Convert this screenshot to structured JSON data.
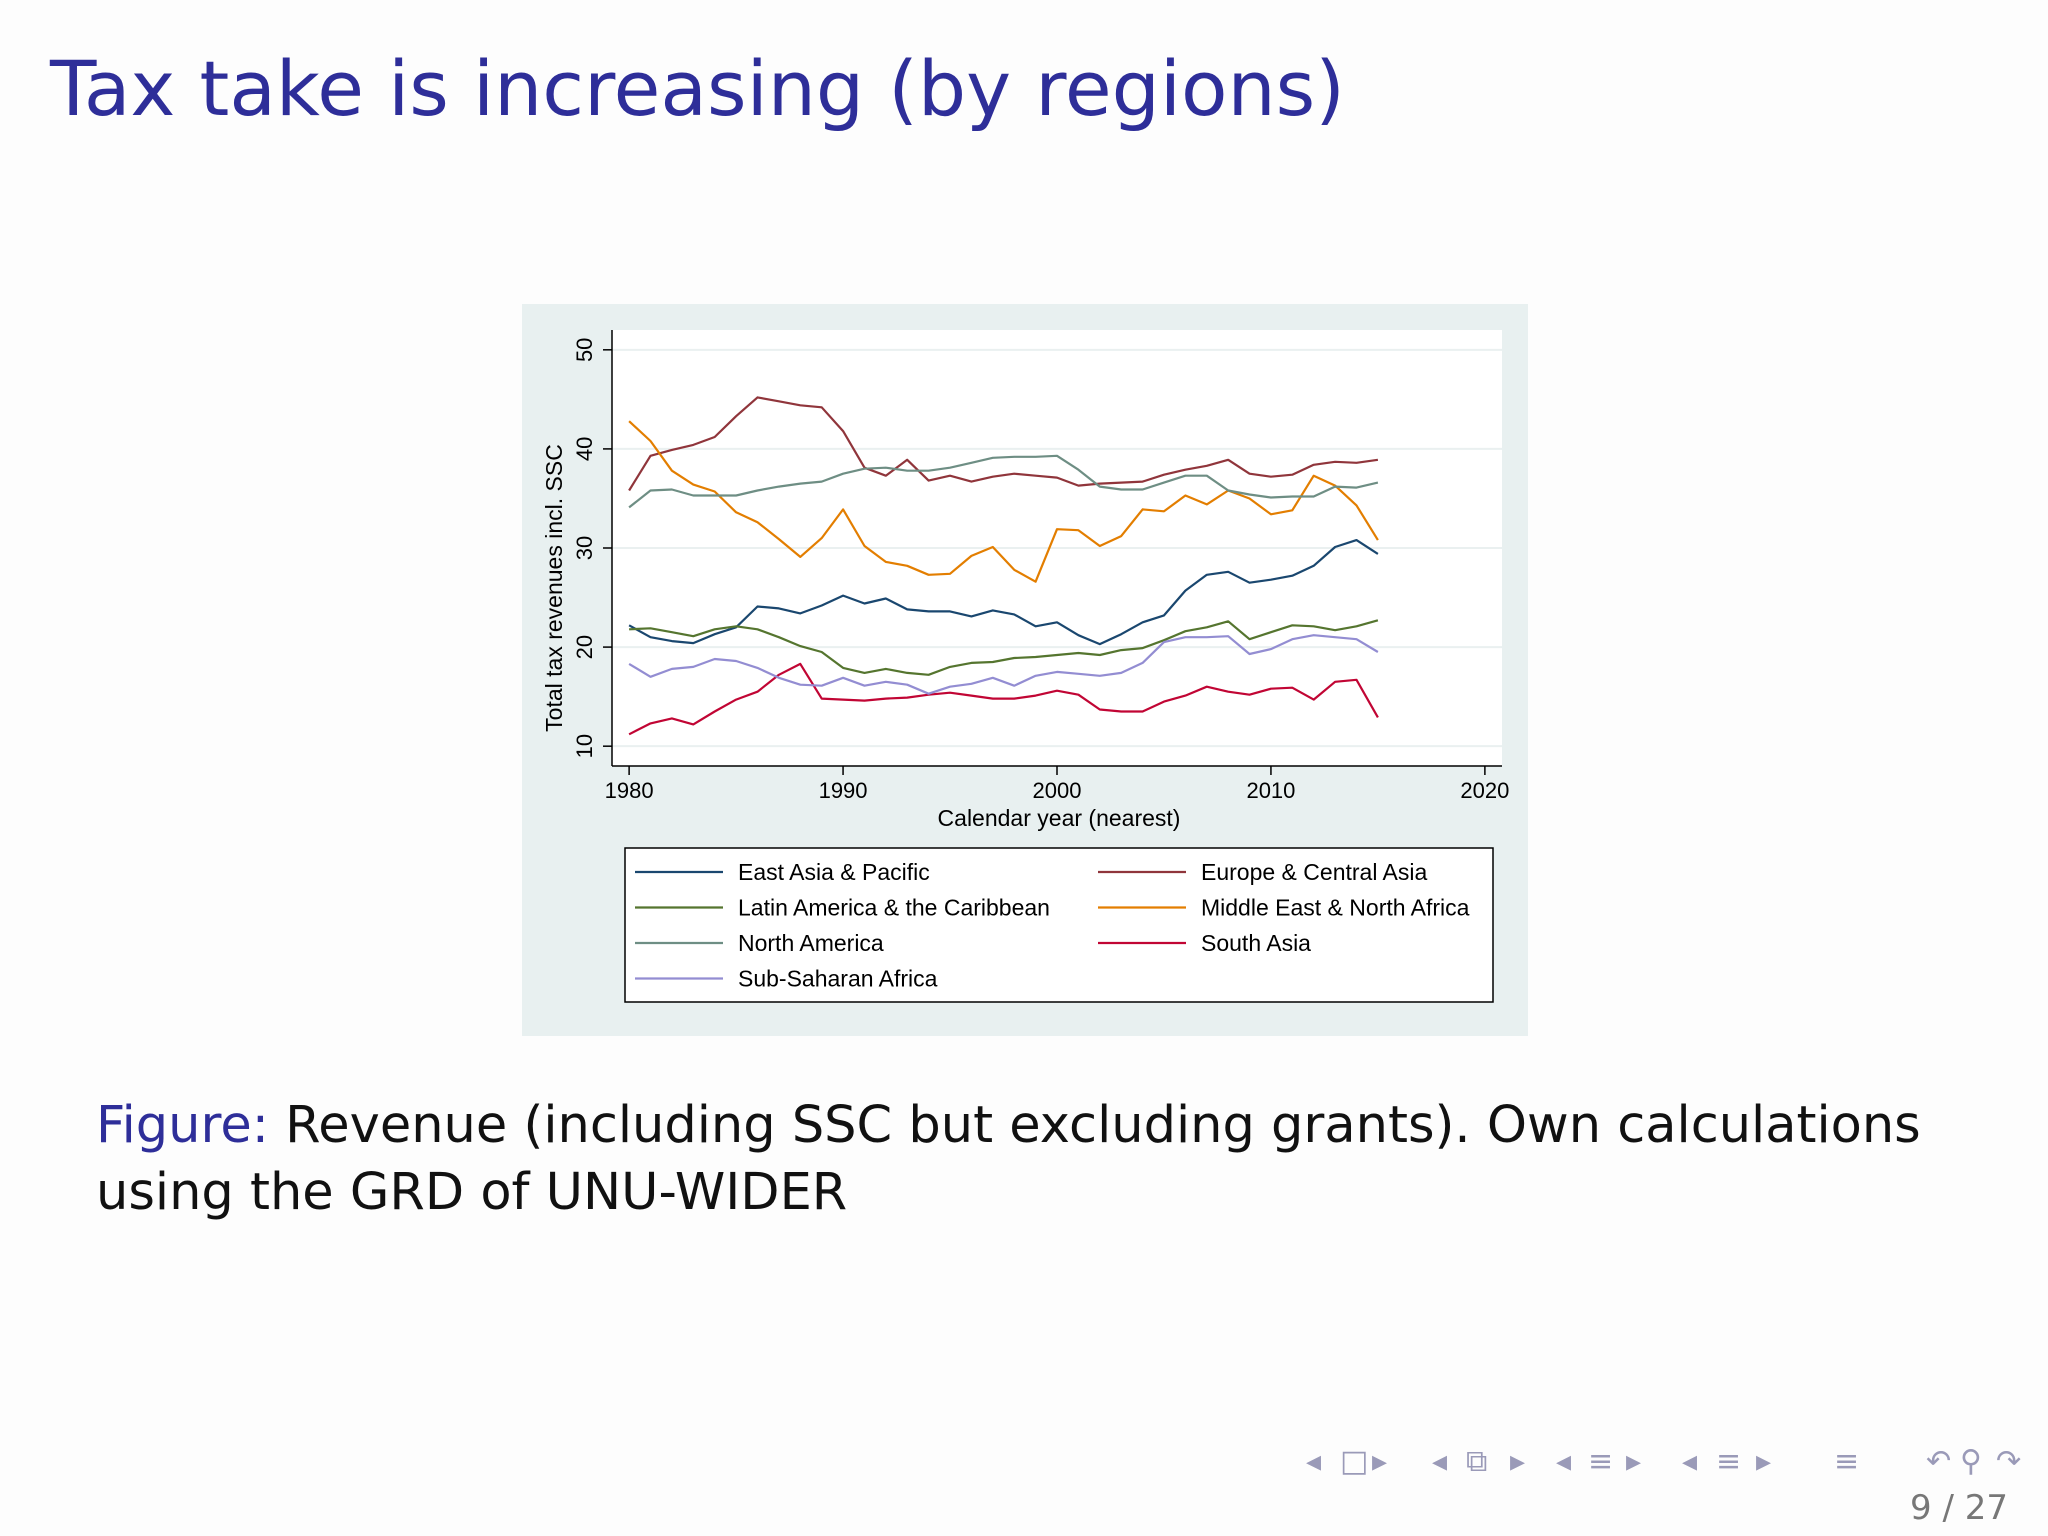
{
  "slide": {
    "title": "Tax take is increasing (by regions)",
    "caption_label": "Figure:",
    "caption_text": "Revenue (including SSC but excluding grants). Own calculations using the GRD of UNU-WIDER",
    "page": "9 / 27"
  },
  "nav": {
    "icons": [
      "arrow-left-icon",
      "frame-icon",
      "arrow-right-icon",
      "arrow-left-icon",
      "subsection-icon",
      "arrow-right-icon",
      "arrow-left-icon",
      "section-icon",
      "arrow-right-icon",
      "arrow-left-icon",
      "list-icon",
      "arrow-right-icon",
      "toc-icon",
      "undo-icon",
      "search-icon",
      "redo-icon"
    ]
  },
  "colors": {
    "title": "#2e2e99",
    "chart_bg": "#e8f0f0",
    "plot_bg": "#ffffff"
  },
  "chart_data": {
    "type": "line",
    "xlabel": "Calendar year (nearest)",
    "ylabel": "Total tax revenues incl. SSC",
    "xlim": [
      1979,
      1981
    ],
    "ylim": [
      8,
      52
    ],
    "xticks": [
      "1980",
      "1990",
      "2000",
      "2010",
      "2020"
    ],
    "yticks": [
      "10",
      "20",
      "30",
      "40",
      "50"
    ],
    "grid": true,
    "legend": "below",
    "years": [
      1980,
      1981,
      1982,
      1983,
      1984,
      1985,
      1986,
      1987,
      1988,
      1989,
      1990,
      1991,
      1992,
      1993,
      1994,
      1995,
      1996,
      1997,
      1998,
      1999,
      2000,
      2001,
      2002,
      2003,
      2004,
      2005,
      2006,
      2007,
      2008,
      2009,
      2010,
      2011,
      2012,
      2013,
      2014,
      2015
    ],
    "series": [
      {
        "name": "East Asia & Pacific",
        "color": "#1a476f",
        "values": [
          22.2,
          21.0,
          20.6,
          20.4,
          21.3,
          22.0,
          24.1,
          23.9,
          23.4,
          24.2,
          25.2,
          24.4,
          24.9,
          23.8,
          23.6,
          23.6,
          23.1,
          23.7,
          23.3,
          22.1,
          22.5,
          21.2,
          20.3,
          21.3,
          22.5,
          23.2,
          25.7,
          27.3,
          27.6,
          26.5,
          26.8,
          27.2,
          28.2,
          30.1,
          30.8,
          29.4
        ]
      },
      {
        "name": "Europe & Central Asia",
        "color": "#90353b",
        "values": [
          35.8,
          39.3,
          39.9,
          40.4,
          41.2,
          43.3,
          45.2,
          44.8,
          44.4,
          44.2,
          41.8,
          38.1,
          37.3,
          38.9,
          36.8,
          37.3,
          36.7,
          37.2,
          37.5,
          37.3,
          37.1,
          36.3,
          36.5,
          36.6,
          36.7,
          37.4,
          37.9,
          38.3,
          38.9,
          37.5,
          37.2,
          37.4,
          38.4,
          38.7,
          38.6,
          38.9
        ]
      },
      {
        "name": "Latin America & the Caribbean",
        "color": "#55752f",
        "values": [
          21.8,
          21.9,
          21.5,
          21.1,
          21.8,
          22.1,
          21.8,
          21.0,
          20.1,
          19.5,
          17.9,
          17.4,
          17.8,
          17.4,
          17.2,
          18.0,
          18.4,
          18.5,
          18.9,
          19.0,
          19.2,
          19.4,
          19.2,
          19.7,
          19.9,
          20.7,
          21.6,
          22.0,
          22.6,
          20.8,
          21.5,
          22.2,
          22.1,
          21.7,
          22.1,
          22.7
        ]
      },
      {
        "name": "Middle East & North Africa",
        "color": "#e37e00",
        "values": [
          42.8,
          40.8,
          37.8,
          36.4,
          35.7,
          33.6,
          32.6,
          30.9,
          29.1,
          31.0,
          33.9,
          30.2,
          28.6,
          28.2,
          27.3,
          27.4,
          29.2,
          30.1,
          27.8,
          26.6,
          31.9,
          31.8,
          30.2,
          31.2,
          33.9,
          33.7,
          35.3,
          34.4,
          35.8,
          35.0,
          33.4,
          33.8,
          37.3,
          36.3,
          34.3,
          30.8
        ]
      },
      {
        "name": "North America",
        "color": "#6e8e84",
        "values": [
          34.1,
          35.8,
          35.9,
          35.3,
          35.3,
          35.3,
          35.8,
          36.2,
          36.5,
          36.7,
          37.5,
          38.0,
          38.1,
          37.8,
          37.8,
          38.1,
          38.6,
          39.1,
          39.2,
          39.2,
          39.3,
          37.9,
          36.2,
          35.9,
          35.9,
          36.6,
          37.3,
          37.3,
          35.8,
          35.4,
          35.1,
          35.2,
          35.2,
          36.2,
          36.1,
          36.6
        ]
      },
      {
        "name": "South Asia",
        "color": "#c10534",
        "values": [
          11.2,
          12.3,
          12.8,
          12.2,
          13.5,
          14.7,
          15.5,
          17.2,
          18.3,
          14.8,
          14.7,
          14.6,
          14.8,
          14.9,
          15.2,
          15.4,
          15.1,
          14.8,
          14.8,
          15.1,
          15.6,
          15.2,
          13.7,
          13.5,
          13.5,
          14.5,
          15.1,
          16.0,
          15.5,
          15.2,
          15.8,
          15.9,
          14.7,
          16.5,
          16.7,
          12.9
        ]
      },
      {
        "name": "Sub-Saharan Africa",
        "color": "#938dd2",
        "values": [
          18.3,
          17.0,
          17.8,
          18.0,
          18.8,
          18.6,
          17.9,
          16.9,
          16.2,
          16.1,
          16.9,
          16.1,
          16.5,
          16.2,
          15.3,
          16.0,
          16.3,
          16.9,
          16.1,
          17.1,
          17.5,
          17.3,
          17.1,
          17.4,
          18.4,
          20.5,
          21.0,
          21.0,
          21.1,
          19.3,
          19.8,
          20.8,
          21.2,
          21.0,
          20.8,
          19.5
        ]
      }
    ]
  }
}
